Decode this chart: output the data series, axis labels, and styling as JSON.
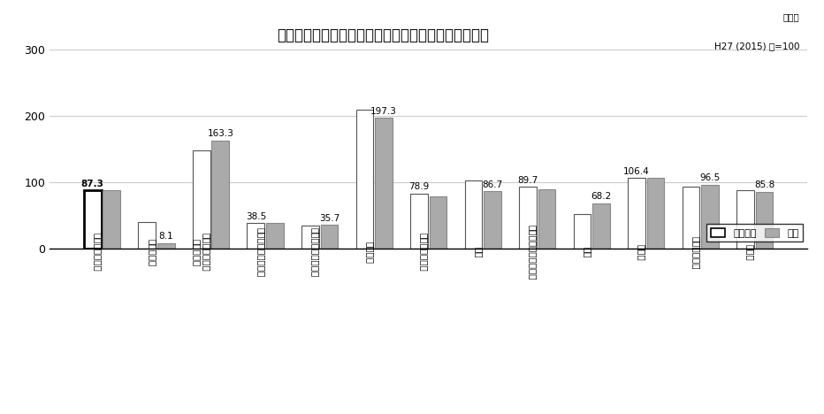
{
  "title": "業種別の生産指数（原指数）の当月と前年同月の比較",
  "subtitle_line1": "原指数",
  "subtitle_line2": "H27 (2015) 年=100",
  "categories": [
    "鉱工業（総合）",
    "鉄鋼・金属",
    "汎用・生産用・\n業務用機械",
    "電子部品・デバイス",
    "電気・情報通信機械",
    "輸送機械",
    "窯業・土石製品",
    "化学",
    "パルプ・紙・紙加工品",
    "繊維",
    "食料品",
    "木材・木製品",
    "その他"
  ],
  "prev_year": [
    87.3,
    40.0,
    148.0,
    38.5,
    35.0,
    209.0,
    83.0,
    103.0,
    93.0,
    52.0,
    106.4,
    93.0,
    88.0
  ],
  "current": [
    87.3,
    8.1,
    163.3,
    38.5,
    35.7,
    197.3,
    78.9,
    86.7,
    89.7,
    68.2,
    106.4,
    96.5,
    85.8
  ],
  "labels": [
    "87.3",
    "8.1",
    "163.3",
    "38.5",
    "35.7",
    "197.3",
    "78.9",
    "86.7",
    "89.7",
    "68.2",
    "106.4",
    "96.5",
    "85.8"
  ],
  "label_on_prev": [
    true,
    false,
    false,
    true,
    false,
    false,
    true,
    false,
    true,
    false,
    true,
    false,
    false
  ],
  "first_bar_bold": [
    true,
    false,
    false,
    false,
    false,
    false,
    false,
    false,
    false,
    false,
    false,
    false,
    false
  ],
  "ylim": [
    0,
    300
  ],
  "yticks": [
    0,
    100,
    200,
    300
  ],
  "bar_color_prev": "#ffffff",
  "bar_color_curr": "#aaaaaa",
  "bar_edge_prev_normal": "#555555",
  "bar_edge_prev_first": "#000000",
  "bar_edge_curr": "#888888",
  "background_color": "#ffffff",
  "legend_labels": [
    "前年同月",
    "当月"
  ],
  "bar_width": 0.32,
  "bar_gap": 0.03
}
